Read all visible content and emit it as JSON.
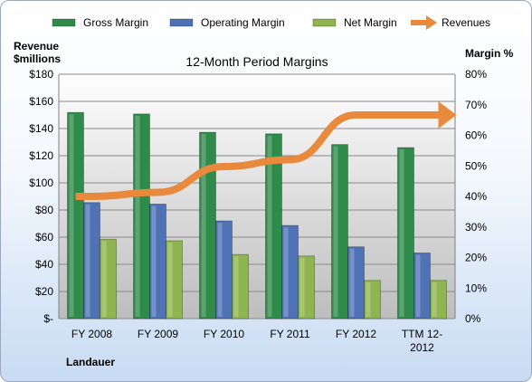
{
  "chart_data": {
    "type": "bar",
    "title": "12-Month Period Margins",
    "company": "Landauer",
    "categories": [
      [
        "FY 2008"
      ],
      [
        "FY 2009"
      ],
      [
        "FY 2010"
      ],
      [
        "FY 2011"
      ],
      [
        "FY 2012"
      ],
      [
        "TTM 12-",
        "2012"
      ]
    ],
    "ylabel_left": [
      "Revenue",
      "$millions"
    ],
    "ylabel_right": "Margin %",
    "left_axis": {
      "ticks": [
        "$-",
        "$20",
        "$40",
        "$60",
        "$80",
        "$100",
        "$120",
        "$140",
        "$160",
        "$180"
      ],
      "ylim": [
        0,
        180
      ]
    },
    "right_axis": {
      "ticks": [
        "0%",
        "10%",
        "20%",
        "30%",
        "40%",
        "50%",
        "60%",
        "70%",
        "80%"
      ],
      "ylim": [
        0,
        80
      ]
    },
    "grid": true,
    "legend_position": "top",
    "series": [
      {
        "name": "Gross Margin",
        "axis": "right",
        "values": [
          67.5,
          67.0,
          61.0,
          60.5,
          57.0,
          56.0
        ],
        "color": "#2e8b4a"
      },
      {
        "name": "Operating Margin",
        "axis": "right",
        "values": [
          38.0,
          37.5,
          32.0,
          30.5,
          23.5,
          21.5
        ],
        "color": "#4f72b5"
      },
      {
        "name": "Net Margin",
        "axis": "right",
        "values": [
          26.0,
          25.5,
          21.0,
          20.5,
          12.5,
          12.5
        ],
        "color": "#8fb550"
      },
      {
        "name": "Revenues",
        "type": "line",
        "axis": "left",
        "values": [
          90,
          93,
          112,
          117,
          150,
          150
        ],
        "color": "#e8893c"
      }
    ]
  }
}
